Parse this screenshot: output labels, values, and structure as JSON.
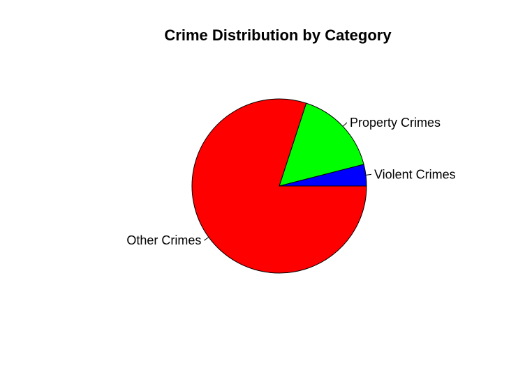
{
  "chart_data": {
    "type": "pie",
    "title": "Crime Distribution by Category",
    "slices": [
      {
        "label": "Violent Crimes",
        "value": 4,
        "color": "#0000FF"
      },
      {
        "label": "Property Crimes",
        "value": 16,
        "color": "#00FF00"
      },
      {
        "label": "Other Crimes",
        "value": 80,
        "color": "#FF0000"
      }
    ],
    "direction": "counterclockwise",
    "start": "3 o'clock",
    "legend": "none"
  }
}
